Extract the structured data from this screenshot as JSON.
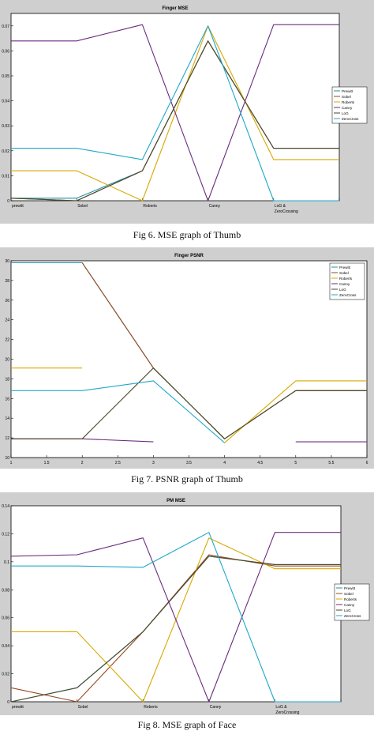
{
  "colors": {
    "figure_bg": "#cfcfcf",
    "axes_bg": "#ffffff",
    "axis": "#000000",
    "legend_border": "#000000"
  },
  "series_colors": [
    "#1f8fa8",
    "#9a4a1e",
    "#d7a900",
    "#6b2c7e",
    "#4a4a2a",
    "#20a8c8"
  ],
  "captions": {
    "fig6": "Fig 6. MSE graph of Thumb",
    "fig7": "Fig 7. PSNR graph of Thumb",
    "fig8": "Fig 8. MSE graph of Face"
  },
  "chart_data": [
    {
      "type": "line",
      "title": "Finger MSE",
      "xlabel": "",
      "ylabel": "",
      "categories": [
        "prewitt",
        "Sobel",
        "Roberts",
        "Canny",
        "LoG &\nZeroCrossing",
        ""
      ],
      "x": [
        1,
        2,
        3,
        4,
        5,
        6
      ],
      "ylim": [
        0,
        0.075
      ],
      "yticks": [
        0,
        0.01,
        0.02,
        0.03,
        0.04,
        0.05,
        0.06,
        0.07
      ],
      "ytick_labels": [
        "0",
        "0.01",
        "0.02",
        "0.03",
        "0.04",
        "0.05",
        "0.06",
        "0.07"
      ],
      "legend_position": "right",
      "series": [
        {
          "name": "Prewitt",
          "values": [
            0.001,
            0.001,
            0.012,
            0.064,
            0.021,
            0.021
          ]
        },
        {
          "name": "Sobel",
          "values": [
            0.001,
            0.0,
            0.012,
            0.064,
            0.021,
            0.021
          ]
        },
        {
          "name": "Roberts",
          "values": [
            0.012,
            0.012,
            0.0,
            0.07,
            0.0165,
            0.0165
          ]
        },
        {
          "name": "Canny",
          "values": [
            0.064,
            0.064,
            0.0705,
            0.0,
            0.0705,
            0.0705
          ]
        },
        {
          "name": "LoG",
          "values": [
            0.001,
            0.0,
            0.012,
            0.064,
            0.021,
            0.021
          ]
        },
        {
          "name": "ZeroCross",
          "values": [
            0.021,
            0.021,
            0.0165,
            0.07,
            0.0,
            0.0
          ]
        }
      ]
    },
    {
      "type": "line",
      "title": "Finger PSNR",
      "xlabel": "",
      "ylabel": "",
      "x": [
        1,
        2,
        3,
        4,
        5,
        6
      ],
      "xlim": [
        1,
        6
      ],
      "xticks": [
        1,
        1.5,
        2,
        2.5,
        3,
        3.5,
        4,
        4.5,
        5,
        5.5,
        6
      ],
      "xtick_labels": [
        "1",
        "1.5",
        "2",
        "2.5",
        "3",
        "3.5",
        "4",
        "4.5",
        "5",
        "5.5",
        "6"
      ],
      "ylim": [
        10,
        30
      ],
      "yticks": [
        10,
        12,
        14,
        16,
        18,
        20,
        22,
        24,
        26,
        28,
        30
      ],
      "ytick_labels": [
        "10",
        "12",
        "14",
        "16",
        "18",
        "20",
        "22",
        "24",
        "26",
        "28",
        "30"
      ],
      "legend_position": "top-right",
      "series": [
        {
          "name": "Prewitt",
          "values": [
            29.8,
            29.8,
            19.1,
            11.9,
            16.8,
            16.8
          ]
        },
        {
          "name": "Sobel",
          "values": [
            null,
            29.8,
            19.1,
            11.9,
            16.8,
            16.8
          ]
        },
        {
          "name": "Roberts",
          "values": [
            19.1,
            19.1,
            null,
            11.5,
            17.8,
            17.8
          ]
        },
        {
          "name": "Canny",
          "values": [
            11.9,
            11.9,
            11.6,
            null,
            11.6,
            11.6
          ]
        },
        {
          "name": "LoG",
          "values": [
            11.9,
            11.9,
            19.1,
            11.9,
            16.8,
            16.8
          ]
        },
        {
          "name": "ZeroCross",
          "values": [
            16.8,
            16.8,
            17.8,
            11.5,
            null,
            null
          ]
        }
      ]
    },
    {
      "type": "line",
      "title": "PM MSE",
      "xlabel": "",
      "ylabel": "",
      "categories": [
        "prewitt",
        "Sobel",
        "Roberts",
        "Canny",
        "LoG &\nZeroCrossing",
        ""
      ],
      "x": [
        1,
        2,
        3,
        4,
        5,
        6
      ],
      "ylim": [
        0,
        0.14
      ],
      "yticks": [
        0,
        0.02,
        0.04,
        0.06,
        0.08,
        0.1,
        0.12,
        0.14
      ],
      "ytick_labels": [
        "0",
        "0.02",
        "0.04",
        "0.06",
        "0.08",
        "0.1",
        "0.12",
        "0.14"
      ],
      "legend_position": "right",
      "series": [
        {
          "name": "Prewitt",
          "values": [
            0.0,
            0.01,
            0.05,
            0.104,
            0.098,
            0.098
          ]
        },
        {
          "name": "Sobel",
          "values": [
            0.01,
            0.0,
            0.05,
            0.105,
            0.097,
            0.097
          ]
        },
        {
          "name": "Roberts",
          "values": [
            0.05,
            0.05,
            0.0,
            0.117,
            0.095,
            0.095
          ]
        },
        {
          "name": "Canny",
          "values": [
            0.104,
            0.105,
            0.117,
            0.0,
            0.121,
            0.121
          ]
        },
        {
          "name": "LoG",
          "values": [
            0.0,
            0.01,
            0.05,
            0.104,
            0.098,
            0.098
          ]
        },
        {
          "name": "ZeroCross",
          "values": [
            0.097,
            0.097,
            0.096,
            0.121,
            0.0,
            0.0
          ]
        }
      ]
    }
  ]
}
